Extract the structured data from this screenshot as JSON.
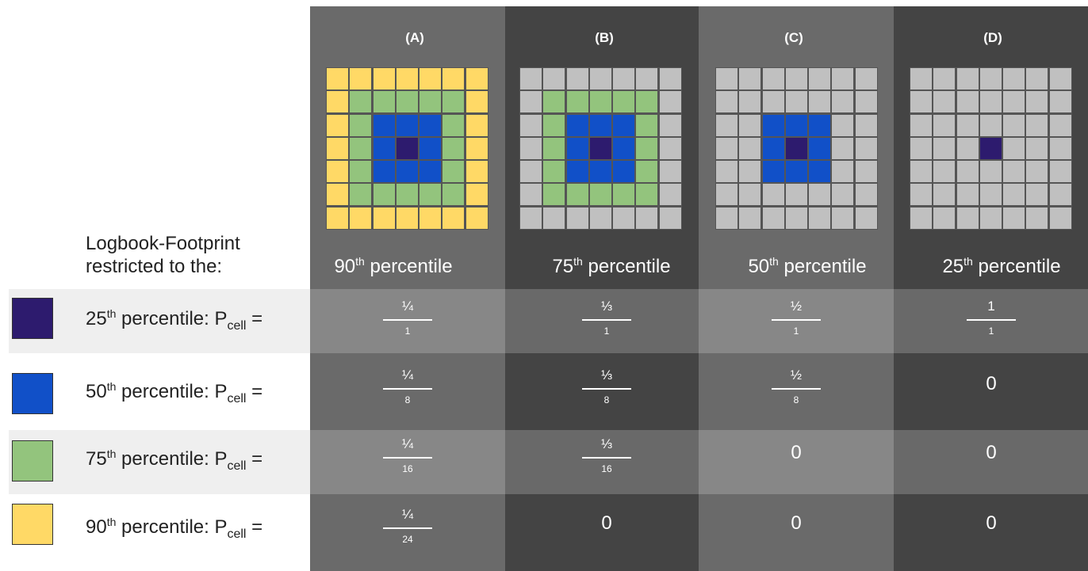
{
  "colors": {
    "purple": "#2d1b6e",
    "blue": "#1150c8",
    "green": "#93c47d",
    "yellow": "#ffd966",
    "gray": "#c0c0c0"
  },
  "columns": [
    {
      "header": "(A)",
      "pct_num": "90",
      "pct_sup": "th",
      "pct_text": " percentile",
      "bg": "#6a6a6a"
    },
    {
      "header": "(B)",
      "pct_num": "75",
      "pct_sup": "th",
      "pct_text": " percentile",
      "bg": "#444444"
    },
    {
      "header": "(C)",
      "pct_num": "50",
      "pct_sup": "th",
      "pct_text": " percentile",
      "bg": "#6a6a6a"
    },
    {
      "header": "(D)",
      "pct_num": "25",
      "pct_sup": "th",
      "pct_text": " percentile",
      "bg": "#444444"
    }
  ],
  "legend": {
    "title": "Logbook-Footprint restricted to the:",
    "rows": [
      {
        "swatch": "#2d1b6e",
        "num": "25",
        "sup": "th",
        "text": " percentile: P",
        "sub": "cell",
        "eq": " ="
      },
      {
        "swatch": "#1150c8",
        "num": "50",
        "sup": "th",
        "text": " percentile: P",
        "sub": "cell",
        "eq": " ="
      },
      {
        "swatch": "#93c47d",
        "num": "75",
        "sup": "th",
        "text": " percentile: P",
        "sub": "cell",
        "eq": " ="
      },
      {
        "swatch": "#ffd966",
        "num": "90",
        "sup": "th",
        "text": " percentile: P",
        "sub": "cell",
        "eq": " ="
      }
    ]
  },
  "table": [
    [
      {
        "top": "¼",
        "bot": "1"
      },
      {
        "top": "⅓",
        "bot": "1"
      },
      {
        "top": "½",
        "bot": "1"
      },
      {
        "top": "1",
        "bot": "1"
      }
    ],
    [
      {
        "top": "¼",
        "bot": "8"
      },
      {
        "top": "⅓",
        "bot": "8"
      },
      {
        "top": "½",
        "bot": "8"
      },
      {
        "value": "0"
      }
    ],
    [
      {
        "top": "¼",
        "bot": "16"
      },
      {
        "top": "⅓",
        "bot": "16"
      },
      {
        "value": "0"
      },
      {
        "value": "0"
      }
    ],
    [
      {
        "top": "¼",
        "bot": "24"
      },
      {
        "value": "0"
      },
      {
        "value": "0"
      },
      {
        "value": "0"
      }
    ]
  ],
  "grid_rings": [
    3,
    2,
    1,
    0
  ]
}
